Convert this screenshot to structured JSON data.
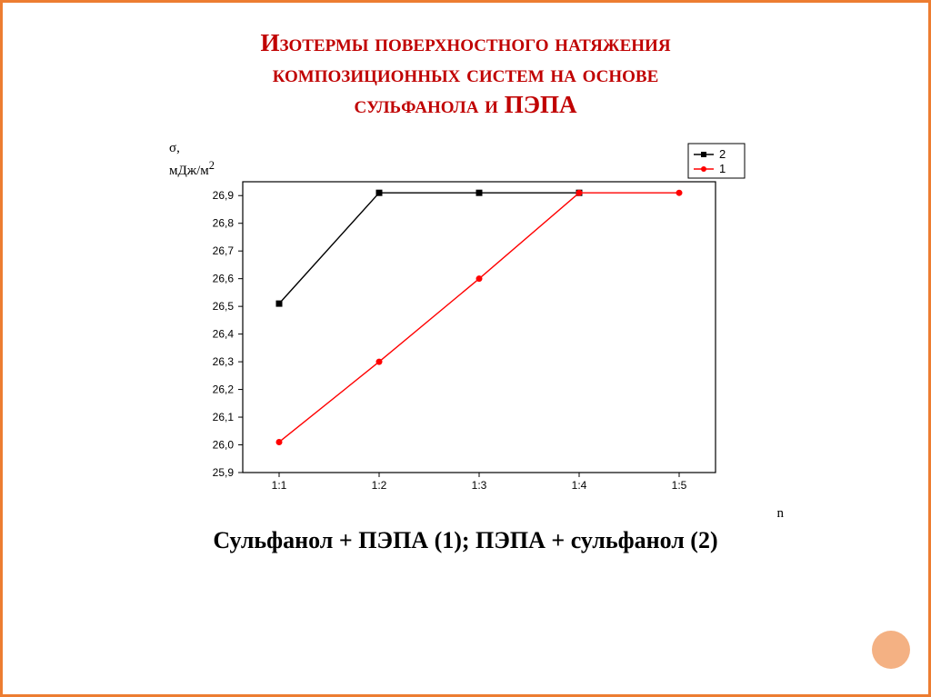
{
  "title_line1": "Изотермы поверхностного натяжения",
  "title_line2": "композиционных систем на основе",
  "title_line3": "сульфанола и ПЭПА",
  "caption": "Сульфанол + ПЭПА (1); ПЭПА + сульфанол (2)",
  "chart": {
    "type": "line",
    "background_color": "#ffffff",
    "plot_border_color": "#000000",
    "y_axis": {
      "label_line1": "σ,",
      "label_line2": "мДж/м",
      "label_sup": "2",
      "min": 25.9,
      "max": 26.95,
      "tick_step": 0.1,
      "tick_labels": [
        "25,9",
        "26,0",
        "26,1",
        "26,2",
        "26,3",
        "26,4",
        "26,5",
        "26,6",
        "26,7",
        "26,8",
        "26,9"
      ],
      "label_fontsize": 15
    },
    "x_axis": {
      "label": "n",
      "categories": [
        "1:1",
        "1:2",
        "1:3",
        "1:4",
        "1:5"
      ],
      "label_fontsize": 15
    },
    "series": [
      {
        "name": "2",
        "color": "#000000",
        "marker": "square",
        "marker_size": 6,
        "line_width": 1.4,
        "y_values": [
          26.51,
          26.91,
          26.91,
          26.91,
          null
        ]
      },
      {
        "name": "1",
        "color": "#ff0000",
        "marker": "circle",
        "marker_size": 6,
        "line_width": 1.4,
        "y_values": [
          26.01,
          26.3,
          26.6,
          26.91,
          26.91
        ]
      }
    ],
    "legend": {
      "position": "top-right",
      "border_color": "#000000",
      "background": "#ffffff",
      "fontsize": 13
    },
    "title_color": "#c00000",
    "slide_border_color": "#ed7d31",
    "accent_circle_color": "#f4b183"
  }
}
